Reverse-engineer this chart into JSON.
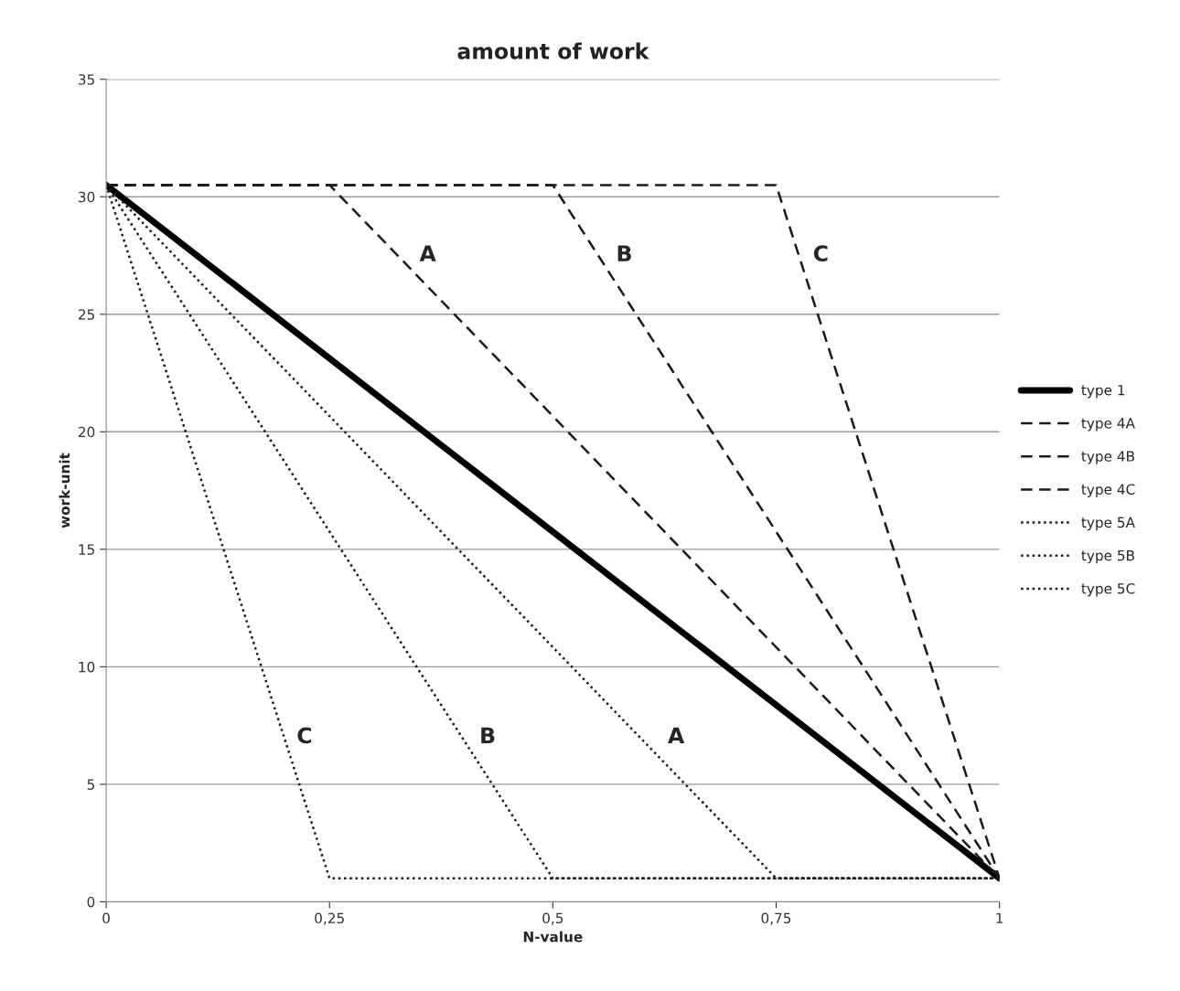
{
  "chart_data": {
    "type": "line",
    "title": "amount of work",
    "xlabel": "N-value",
    "ylabel": "work-unit",
    "xlim": [
      0,
      1
    ],
    "xticks": [
      0,
      {
        "value": 0.25,
        "label": "0,25"
      },
      {
        "value": 0.5,
        "label": "0,5"
      },
      {
        "value": 0.75,
        "label": "0,75"
      },
      1
    ],
    "ylim": [
      0,
      35
    ],
    "yticks": [
      0,
      5,
      10,
      15,
      20,
      25,
      30,
      35
    ],
    "grid": "y",
    "legend": "right",
    "marker": "none",
    "series": [
      {
        "name": "type 1",
        "color": "#000000",
        "line_style": "solid",
        "x": [
          0,
          1
        ],
        "values": [
          30.5,
          1
        ]
      },
      {
        "name": "type 4A",
        "color": "#1a1a1a",
        "line_style": "dashed",
        "x": [
          0,
          0.25,
          1
        ],
        "values": [
          30.5,
          30.5,
          1
        ]
      },
      {
        "name": "type 4B",
        "color": "#1a1a1a",
        "line_style": "dashed",
        "x": [
          0,
          0.5,
          1
        ],
        "values": [
          30.5,
          30.5,
          1
        ]
      },
      {
        "name": "type 4C",
        "color": "#1a1a1a",
        "line_style": "dashed",
        "x": [
          0,
          0.75,
          1
        ],
        "values": [
          30.5,
          30.5,
          1
        ]
      },
      {
        "name": "type 5A",
        "color": "#1a1a1a",
        "line_style": "dotted",
        "x": [
          0,
          0.75,
          1
        ],
        "values": [
          30.5,
          1,
          1
        ]
      },
      {
        "name": "type 5B",
        "color": "#1a1a1a",
        "line_style": "dotted",
        "x": [
          0,
          0.5,
          1
        ],
        "values": [
          30.5,
          1,
          1
        ]
      },
      {
        "name": "type 5C",
        "color": "#1a1a1a",
        "line_style": "dotted",
        "x": [
          0,
          0.25,
          1
        ],
        "values": [
          30.5,
          1,
          1
        ]
      }
    ],
    "annotations": [
      "A",
      "B",
      "C",
      "C",
      "B",
      "A"
    ]
  }
}
